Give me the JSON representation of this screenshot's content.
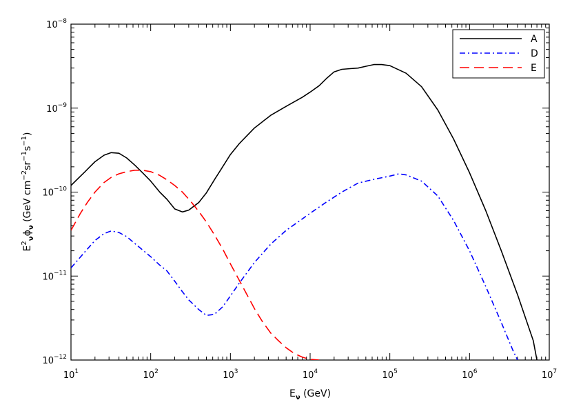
{
  "chart_data": {
    "type": "line",
    "title": "",
    "xlabel": {
      "base": "E",
      "sub": "ν",
      "rest": " (GeV)"
    },
    "ylabel": {
      "parts": [
        {
          "t": "E",
          "s": ""
        },
        {
          "t": "2",
          "s": "sup"
        },
        {
          "t": "ν",
          "s": "sub"
        },
        {
          "t": "ϕ",
          "s": ""
        },
        {
          "t": "ν",
          "s": "sub"
        },
        {
          "t": " (GeV cm",
          "s": ""
        },
        {
          "t": "−2",
          "s": "sup"
        },
        {
          "t": "sr",
          "s": ""
        },
        {
          "t": "−1",
          "s": "sup"
        },
        {
          "t": "s",
          "s": ""
        },
        {
          "t": "−1",
          "s": "sup"
        },
        {
          "t": ")",
          "s": ""
        }
      ]
    },
    "x_scale": "log",
    "y_scale": "log",
    "xlim": [
      10,
      10000000
    ],
    "ylim": [
      1e-12,
      1e-08
    ],
    "x_ticks": [
      {
        "base": "10",
        "exp": "1",
        "value": 10
      },
      {
        "base": "10",
        "exp": "2",
        "value": 100
      },
      {
        "base": "10",
        "exp": "3",
        "value": 1000
      },
      {
        "base": "10",
        "exp": "4",
        "value": 10000
      },
      {
        "base": "10",
        "exp": "5",
        "value": 100000
      },
      {
        "base": "10",
        "exp": "6",
        "value": 1000000
      },
      {
        "base": "10",
        "exp": "7",
        "value": 10000000
      }
    ],
    "y_ticks": [
      {
        "base": "10",
        "exp": "−12",
        "value": 1e-12
      },
      {
        "base": "10",
        "exp": "−11",
        "value": 1e-11
      },
      {
        "base": "10",
        "exp": "−10",
        "value": 1e-10
      },
      {
        "base": "10",
        "exp": "−9",
        "value": 1e-09
      },
      {
        "base": "10",
        "exp": "−8",
        "value": 1e-08
      }
    ],
    "legend_position": "top-right",
    "series": [
      {
        "name": "A",
        "color": "#000000",
        "dash": "solid",
        "x": [
          10,
          15,
          20,
          26,
          32,
          40,
          50,
          63,
          79,
          100,
          130,
          160,
          200,
          250,
          300,
          400,
          500,
          630,
          800,
          1000,
          1300,
          2000,
          3200,
          5000,
          8000,
          10000,
          13000,
          16000,
          20000,
          25000,
          32000,
          40000,
          50000,
          63000,
          79000,
          100000,
          160000,
          250000,
          400000,
          630000,
          1000000,
          1600000,
          2500000,
          4000000,
          6300000,
          7000000
        ],
        "y": [
          1.2e-10,
          1.75e-10,
          2.3e-10,
          2.75e-10,
          2.95e-10,
          2.9e-10,
          2.55e-10,
          2.1e-10,
          1.7e-10,
          1.35e-10,
          1e-10,
          8.2e-11,
          6.3e-11,
          5.8e-11,
          6.1e-11,
          7.5e-11,
          9.8e-11,
          1.4e-10,
          2e-10,
          2.8e-10,
          3.8e-10,
          5.8e-10,
          8.2e-10,
          1.05e-09,
          1.35e-09,
          1.55e-09,
          1.85e-09,
          2.25e-09,
          2.7e-09,
          2.9e-09,
          2.95e-09,
          3e-09,
          3.15e-09,
          3.3e-09,
          3.3e-09,
          3.2e-09,
          2.6e-09,
          1.8e-09,
          9.5e-10,
          4.3e-10,
          1.7e-10,
          6e-11,
          2e-11,
          6e-12,
          1.7e-12,
          1e-12
        ]
      },
      {
        "name": "D",
        "color": "#0000ff",
        "dash": "dash-dot",
        "x": [
          10,
          15,
          20,
          26,
          32,
          40,
          50,
          63,
          79,
          100,
          130,
          160,
          200,
          250,
          300,
          400,
          500,
          630,
          800,
          1000,
          1300,
          2000,
          3200,
          5000,
          8000,
          10000,
          16000,
          25000,
          40000,
          63000,
          100000,
          130000,
          160000,
          250000,
          400000,
          630000,
          1000000,
          1600000,
          2500000,
          3500000,
          4000000
        ],
        "y": [
          1.25e-11,
          1.95e-11,
          2.65e-11,
          3.2e-11,
          3.45e-11,
          3.3e-11,
          2.95e-11,
          2.45e-11,
          2.05e-11,
          1.7e-11,
          1.35e-11,
          1.15e-11,
          8.7e-12,
          6.5e-12,
          5.2e-12,
          4e-12,
          3.4e-12,
          3.5e-12,
          4.3e-12,
          5.8e-12,
          8.3e-12,
          1.45e-11,
          2.4e-11,
          3.5e-11,
          4.8e-11,
          5.6e-11,
          7.6e-11,
          1e-10,
          1.28e-10,
          1.42e-10,
          1.55e-10,
          1.65e-10,
          1.6e-10,
          1.35e-10,
          9e-11,
          4.6e-11,
          2e-11,
          7.5e-12,
          2.8e-12,
          1.3e-12,
          1e-12
        ]
      },
      {
        "name": "E",
        "color": "#ff0000",
        "dash": "dashed",
        "x": [
          10,
          13,
          16,
          20,
          26,
          32,
          40,
          50,
          63,
          79,
          100,
          130,
          160,
          200,
          250,
          320,
          400,
          500,
          630,
          800,
          1000,
          1300,
          1600,
          2000,
          2500,
          3200,
          4000,
          5000,
          6300,
          8000,
          10000,
          13000
        ],
        "y": [
          3.5e-11,
          5.5e-11,
          7.5e-11,
          1e-10,
          1.3e-10,
          1.5e-10,
          1.65e-10,
          1.75e-10,
          1.82e-10,
          1.82e-10,
          1.75e-10,
          1.58e-10,
          1.4e-10,
          1.2e-10,
          1e-10,
          7.7e-11,
          5.9e-11,
          4.4e-11,
          3.1e-11,
          2.1e-11,
          1.4e-11,
          8.8e-12,
          6.1e-12,
          4.1e-12,
          2.9e-12,
          2.1e-12,
          1.7e-12,
          1.4e-12,
          1.2e-12,
          1.08e-12,
          1.02e-12,
          1e-12
        ]
      }
    ]
  }
}
